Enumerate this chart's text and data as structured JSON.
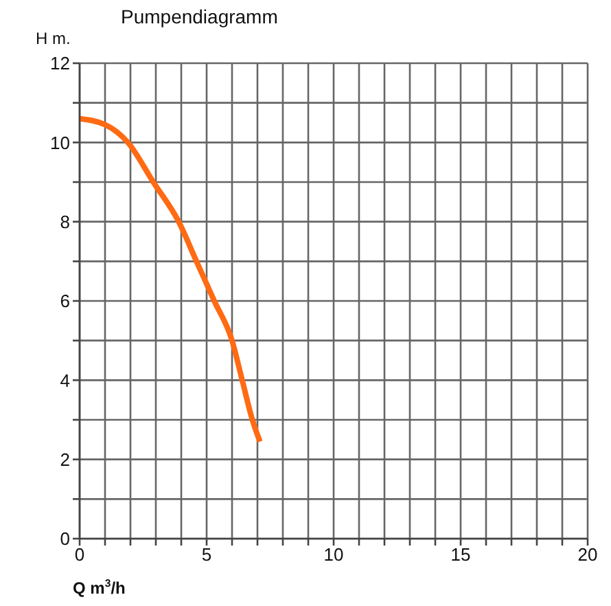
{
  "chart_data": {
    "type": "line",
    "title": "Pumpendiagramm",
    "xlabel": "Q m$^{3}$/h",
    "ylabel": "H m.",
    "x": [
      0,
      1,
      1.9,
      2.9,
      3.9,
      4.6,
      5.3,
      6.0,
      6.4,
      6.8,
      7.1
    ],
    "series": [
      {
        "color": "#ff6a13",
        "values": [
          10.6,
          10.45,
          10,
          9,
          8,
          7,
          6,
          5,
          4,
          3,
          2.45
        ]
      }
    ],
    "xlim": [
      0,
      20
    ],
    "xticks": [
      0,
      {
        "value": 1,
        "label": null
      },
      {
        "value": 2,
        "label": null
      },
      {
        "value": 3,
        "label": null
      },
      {
        "value": 4,
        "label": null
      },
      5,
      {
        "value": 6,
        "label": null
      },
      {
        "value": 7,
        "label": null
      },
      {
        "value": 8,
        "label": null
      },
      {
        "value": 9,
        "label": null
      },
      10,
      {
        "value": 11,
        "label": null
      },
      {
        "value": 12,
        "label": null
      },
      {
        "value": 13,
        "label": null
      },
      {
        "value": 14,
        "label": null
      },
      15,
      {
        "value": 16,
        "label": null
      },
      {
        "value": 17,
        "label": null
      },
      {
        "value": 18,
        "label": null
      },
      {
        "value": 19,
        "label": null
      },
      20
    ],
    "ylim": [
      0,
      12
    ],
    "yticks": [
      0,
      {
        "value": 1,
        "label": null
      },
      2,
      {
        "value": 3,
        "label": null
      },
      4,
      {
        "value": 5,
        "label": null
      },
      6,
      {
        "value": 7,
        "label": null
      },
      8,
      {
        "value": 9,
        "label": null
      },
      10,
      {
        "value": 11,
        "label": null
      },
      12
    ],
    "grid": true,
    "legend": false,
    "marker": "none",
    "line_style": "solid"
  }
}
